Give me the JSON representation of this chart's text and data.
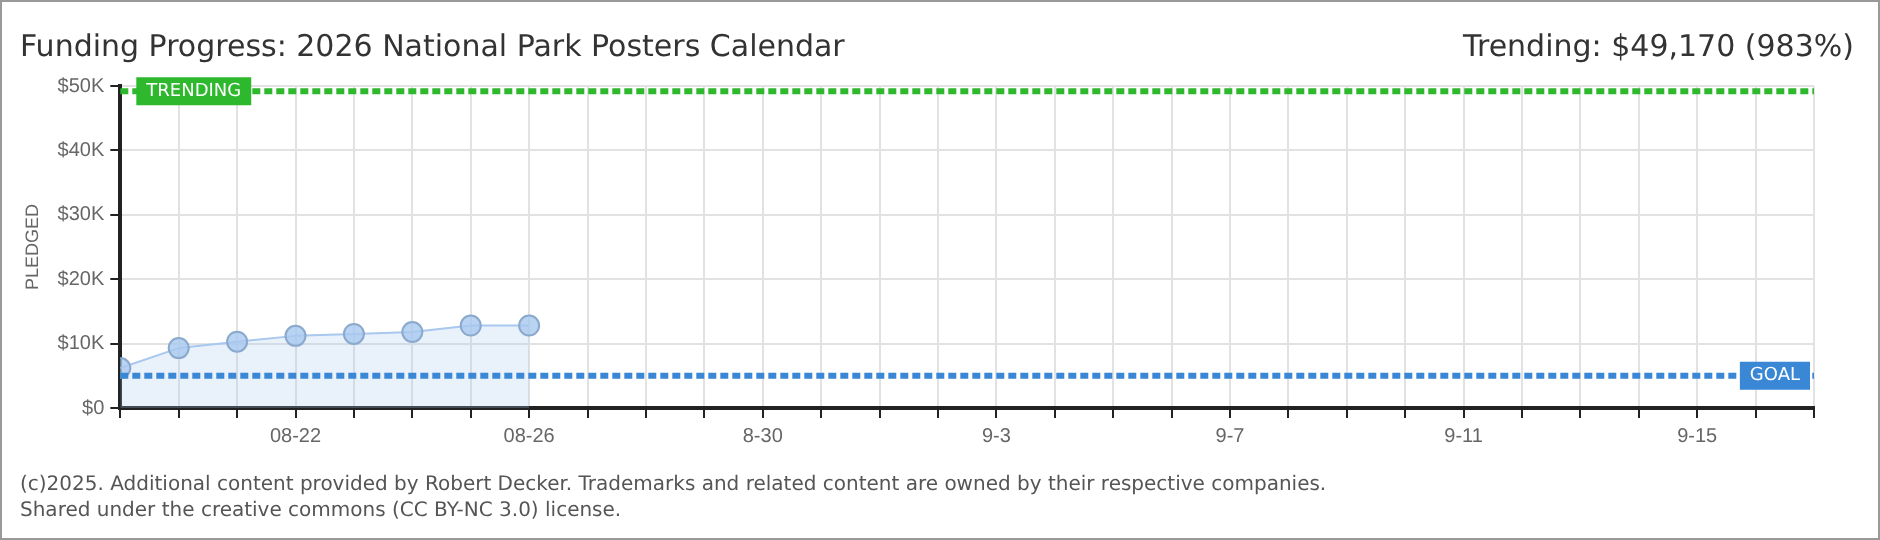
{
  "chart_data": {
    "type": "area",
    "title": "Funding Progress: 2026 National Park Posters Calendar",
    "subtitle": "Trending: $49,170 (983%)",
    "ylabel": "PLEDGED",
    "x": [
      "--08-19",
      "--08-20",
      "--08-21",
      "--08-22",
      "--08-23",
      "--08-24",
      "--08-25",
      "--08-26"
    ],
    "series": [
      {
        "color": "#a8c8ef",
        "values": [
          6200,
          9300,
          10300,
          11200,
          11500,
          11800,
          12800,
          12800
        ]
      }
    ],
    "xlim": [
      "--08-19",
      "--09-17"
    ],
    "xticks": [
      {
        "value": "--08-19",
        "label": null
      },
      {
        "value": "--08-20",
        "label": null
      },
      {
        "value": "--08-21",
        "label": null
      },
      {
        "value": "--08-22",
        "label": "08-22"
      },
      {
        "value": "--08-23",
        "label": null
      },
      {
        "value": "--08-24",
        "label": null
      },
      {
        "value": "--08-25",
        "label": null
      },
      {
        "value": "--08-26",
        "label": "08-26"
      },
      {
        "value": "--08-27",
        "label": null
      },
      {
        "value": "--08-28",
        "label": null
      },
      {
        "value": "--08-29",
        "label": null
      },
      {
        "value": "--08-30",
        "label": "8-30"
      },
      {
        "value": "--08-31",
        "label": null
      },
      {
        "value": "--09-01",
        "label": null
      },
      {
        "value": "--09-02",
        "label": null
      },
      {
        "value": "--09-03",
        "label": "9-3"
      },
      {
        "value": "--09-04",
        "label": null
      },
      {
        "value": "--09-05",
        "label": null
      },
      {
        "value": "--09-06",
        "label": null
      },
      {
        "value": "--09-07",
        "label": "9-7"
      },
      {
        "value": "--09-08",
        "label": null
      },
      {
        "value": "--09-09",
        "label": null
      },
      {
        "value": "--09-10",
        "label": null
      },
      {
        "value": "--09-11",
        "label": "9-11"
      },
      {
        "value": "--09-12",
        "label": null
      },
      {
        "value": "--09-13",
        "label": null
      },
      {
        "value": "--09-14",
        "label": null
      },
      {
        "value": "--09-15",
        "label": "9-15"
      },
      {
        "value": "--09-16",
        "label": null
      },
      {
        "value": "--09-17",
        "label": null
      }
    ],
    "ylim": [
      0,
      50000
    ],
    "yticks": [
      {
        "value": 0,
        "label": "$0"
      },
      {
        "value": 10000,
        "label": "$10K"
      },
      {
        "value": 20000,
        "label": "$20K"
      },
      {
        "value": 30000,
        "label": "$30K"
      },
      {
        "value": 40000,
        "label": "$40K"
      },
      {
        "value": 50000,
        "label": "$50K"
      }
    ],
    "ref_lines": [
      {
        "axis": "y",
        "value": 49170,
        "label": "TRENDING",
        "color": "#2db82d",
        "line_style": "dashed"
      },
      {
        "axis": "y",
        "value": 5000,
        "label": "GOAL",
        "color": "#3a87d6",
        "line_style": "dashed"
      }
    ],
    "grid": true,
    "marker": "circle",
    "legend": false,
    "annotations": [
      "(c)2025. Additional content provided by Robert Decker. Trademarks and related content are owned by their respective companies.",
      "Shared under the creative commons (CC BY-NC 3.0) license."
    ]
  }
}
